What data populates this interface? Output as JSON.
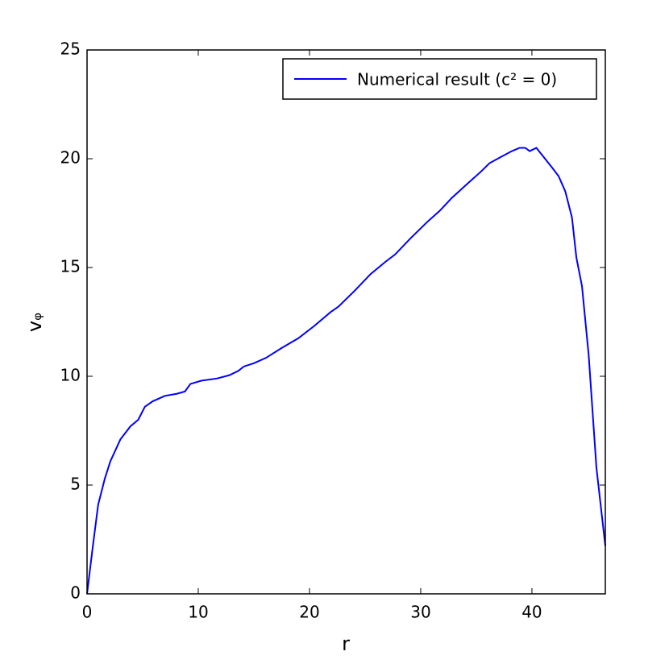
{
  "chart_data": {
    "type": "line",
    "xlabel": "r",
    "ylabel": "vᵩ",
    "xlim": [
      0,
      46.6
    ],
    "ylim": [
      0,
      25
    ],
    "xticks": [
      0,
      10,
      20,
      30,
      40
    ],
    "yticks": [
      0,
      5,
      10,
      15,
      20,
      25
    ],
    "legend": "upper right",
    "x": [
      0,
      0.5,
      1.0,
      1.6,
      2.1,
      3.0,
      3.9,
      4.6,
      5.2,
      5.9,
      7.0,
      8.1,
      8.8,
      9.3,
      10.3,
      11.7,
      12.8,
      13.6,
      14.1,
      15.0,
      16.1,
      17.5,
      19.0,
      20.4,
      21.9,
      22.6,
      24.1,
      25.5,
      26.8,
      27.7,
      29.1,
      30.6,
      31.7,
      32.8,
      34.2,
      35.4,
      36.2,
      37.1,
      38.2,
      38.9,
      39.4,
      39.8,
      40.4,
      41.1,
      41.8,
      42.4,
      43.0,
      43.6,
      44.0,
      44.5,
      45.1,
      45.8,
      46.6
    ],
    "series": [
      {
        "name": "Numerical result (c² = 0)",
        "color": "#0000ff",
        "values": [
          0,
          2.1,
          4.1,
          5.3,
          6.1,
          7.1,
          7.7,
          8.0,
          8.6,
          8.85,
          9.1,
          9.2,
          9.3,
          9.65,
          9.8,
          9.9,
          10.05,
          10.25,
          10.45,
          10.6,
          10.85,
          11.3,
          11.75,
          12.3,
          12.95,
          13.2,
          13.95,
          14.7,
          15.25,
          15.6,
          16.35,
          17.1,
          17.6,
          18.2,
          18.85,
          19.4,
          19.8,
          20.05,
          20.35,
          20.5,
          20.5,
          20.35,
          20.5,
          20.05,
          19.6,
          19.2,
          18.5,
          17.3,
          15.45,
          14.15,
          11.0,
          5.8,
          2.2
        ]
      }
    ]
  }
}
